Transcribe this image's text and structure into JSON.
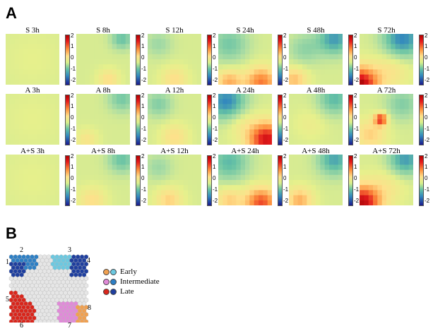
{
  "panels": {
    "a": "A",
    "b": "B"
  },
  "heatmaps": {
    "rows": [
      {
        "cells": [
          {
            "label": "S  3h"
          },
          {
            "label": "S  8h"
          },
          {
            "label": "S  12h"
          },
          {
            "label": "S  24h"
          },
          {
            "label": "S  48h"
          },
          {
            "label": "S  72h"
          }
        ]
      },
      {
        "cells": [
          {
            "label": "A  3h"
          },
          {
            "label": "A  8h"
          },
          {
            "label": "A  12h"
          },
          {
            "label": "A  24h"
          },
          {
            "label": "A  48h"
          },
          {
            "label": "A  72h"
          }
        ]
      },
      {
        "cells": [
          {
            "label": "A+S  3h"
          },
          {
            "label": "A+S  8h"
          },
          {
            "label": "A+S  12h"
          },
          {
            "label": "A+S  24h"
          },
          {
            "label": "A+S  48h"
          },
          {
            "label": "A+S  72h"
          }
        ]
      }
    ],
    "colorbar_ticks": [
      "2",
      "1",
      "0",
      "-1",
      "-2"
    ],
    "colorbar_range": [
      -2,
      2
    ]
  },
  "clusters": {
    "numbers": [
      "1",
      "2",
      "3",
      "4",
      "5",
      "6",
      "7",
      "8"
    ],
    "legend": [
      {
        "label": "Early",
        "colors": [
          "#f0a050",
          "#6cc8e0"
        ]
      },
      {
        "label": "Intermediate",
        "colors": [
          "#e08ad8",
          "#2e7fc4"
        ]
      },
      {
        "label": "Late",
        "colors": [
          "#d9261c",
          "#1f3f9e"
        ]
      }
    ]
  },
  "colors": {
    "early_orange": "#f0a050",
    "early_cyan": "#6cc8e0",
    "intermediate_magenta": "#e08ad8",
    "intermediate_blue": "#2e7fc4",
    "late_red": "#d9261c",
    "late_navy": "#1f3f9e",
    "empty_hex": "#e6e6e6"
  }
}
